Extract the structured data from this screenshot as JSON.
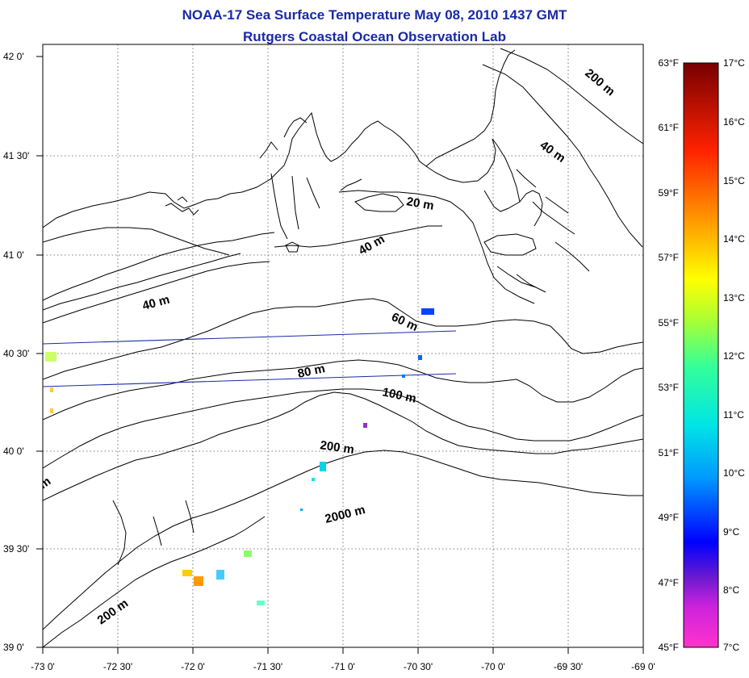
{
  "title_line1": "NOAA-17 Sea Surface Temperature May 08, 2010 1437 GMT",
  "title_line2": "Rutgers Coastal Ocean Observation Lab",
  "axes": {
    "lat_labels": [
      "42 0'",
      "41 30'",
      "41 0'",
      "40 30'",
      "40 0'",
      "39 30'",
      "39 0'"
    ],
    "lon_labels": [
      "-73 0'",
      "-72 30'",
      "-72 0'",
      "-71 30'",
      "-71 0'",
      "-70 30'",
      "-70 0'",
      "-69 30'",
      "-69 0'"
    ]
  },
  "contour_labels": [
    {
      "text": "200 m"
    },
    {
      "text": "40 m"
    },
    {
      "text": "20 m"
    },
    {
      "text": "40 m"
    },
    {
      "text": "40 m"
    },
    {
      "text": "60 m"
    },
    {
      "text": "80 m"
    },
    {
      "text": "100 m"
    },
    {
      "text": "200 m"
    },
    {
      "text": "2000 m"
    },
    {
      "text": "200 m"
    },
    {
      "text": "m"
    }
  ],
  "colorbar": {
    "fahrenheit_labels": [
      "63°F",
      "61°F",
      "59°F",
      "57°F",
      "55°F",
      "53°F",
      "51°F",
      "49°F",
      "47°F",
      "45°F"
    ],
    "celsius_labels": [
      "17°C",
      "16°C",
      "15°C",
      "14°C",
      "13°C",
      "12°C",
      "11°C",
      "10°C",
      "9°C",
      "8°C",
      "7°C"
    ],
    "colors": [
      "#ff00ff",
      "#7700cc",
      "#0000ff",
      "#00aaff",
      "#00ffcc",
      "#66ff66",
      "#ffff00",
      "#ffaa00",
      "#ff0000",
      "#660000"
    ]
  }
}
